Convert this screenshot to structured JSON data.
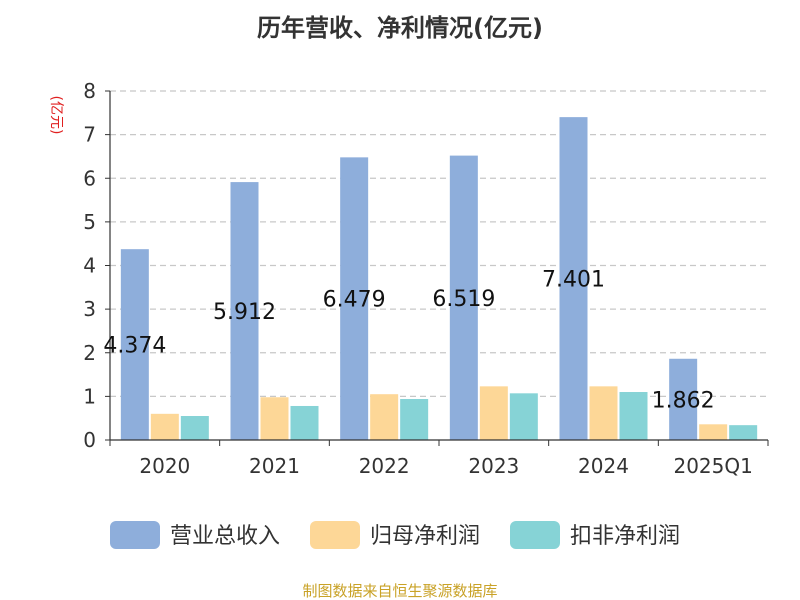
{
  "chart_data": {
    "type": "bar",
    "title": "历年营收、净利情况(亿元)",
    "unit_label": "(亿元)",
    "categories": [
      "2020",
      "2021",
      "2022",
      "2023",
      "2024",
      "2025Q1"
    ],
    "ylim": [
      0,
      8
    ],
    "yticks": [
      "0",
      "1",
      "2",
      "3",
      "4",
      "5",
      "6",
      "7",
      "8"
    ],
    "grid": true,
    "legend_position": "bottom",
    "series": [
      {
        "name": "营业总收入",
        "color": "#8eaedb",
        "values": [
          4.374,
          5.912,
          6.479,
          6.519,
          7.401,
          1.862
        ],
        "labels": [
          "4.374",
          "5.912",
          "6.479",
          "6.519",
          "7.401",
          "1.862"
        ]
      },
      {
        "name": "归母净利润",
        "color": "#fdd797",
        "values": [
          0.6,
          0.98,
          1.05,
          1.23,
          1.23,
          0.36
        ]
      },
      {
        "name": "扣非净利润",
        "color": "#86d3d6",
        "values": [
          0.55,
          0.78,
          0.94,
          1.07,
          1.1,
          0.34
        ]
      }
    ],
    "source": "制图数据来自恒生聚源数据库"
  }
}
